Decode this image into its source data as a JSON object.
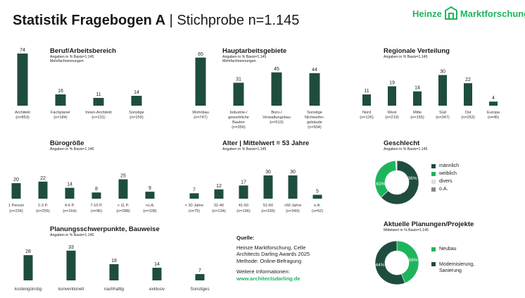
{
  "header": {
    "title_bold": "Statistik Fragebogen A",
    "title_sep": " | ",
    "title_rest": "Stichprobe n=1.145",
    "logo_left": "Heinze",
    "logo_right": "Marktforschung"
  },
  "colors": {
    "bar": "#1e4d40",
    "accent": "#1db55c",
    "light": "#dddddd",
    "grey": "#888888"
  },
  "source": {
    "heading": "Quelle:",
    "line1": "Heinze Marktforschung, Celle",
    "line2": "Architects Darling Awards 2025",
    "line3": "Methode: Online-Befragung",
    "more": "Weitere Informationen:",
    "link": "www.architectsdarling.de"
  },
  "chart_data": [
    {
      "id": "beruf",
      "type": "bar",
      "title": "Beruf/Arbeitsbereich",
      "note": [
        "Angaben in % Basis=1.145",
        "Mehrfachnennungen"
      ],
      "categories": [
        [
          "Architekt",
          "(n=853)"
        ],
        [
          "Fachplaner",
          "(n=184)"
        ],
        [
          "Innen-Architekt",
          "(n=131)"
        ],
        [
          "Sonstige",
          "(n=159)"
        ]
      ],
      "values": [
        74,
        16,
        11,
        14
      ]
    },
    {
      "id": "haupt",
      "type": "bar",
      "title": "Hauptarbeitsgebiete",
      "note": [
        "Angaben in % Basis=1.145",
        "Mehrfachnennungen"
      ],
      "categories": [
        [
          "Wohnbau",
          "(n=747)"
        ],
        [
          "Industrie-/",
          "gewerbliche",
          "Bauten",
          "(n=356)"
        ],
        [
          "Büro-/",
          "Verwaltungsbau",
          "(n=519)"
        ],
        [
          "Sonstige",
          "Nichtwohn-",
          "gebäude",
          "(n=504)"
        ]
      ],
      "values": [
        65,
        31,
        45,
        44
      ]
    },
    {
      "id": "region",
      "type": "bar",
      "title": "Regionale Verteilung",
      "note": [
        "Angaben in % Basis=1.145"
      ],
      "categories": [
        [
          "Nord",
          "(n=126)"
        ],
        [
          "West",
          "(n=219)"
        ],
        [
          "Mitte",
          "(n=155)"
        ],
        [
          "Süd",
          "(n=347)"
        ],
        [
          "Ost",
          "(n=253)"
        ],
        [
          "Europa",
          "(n=45)"
        ]
      ],
      "values": [
        11,
        19,
        14,
        30,
        22,
        4
      ]
    },
    {
      "id": "buero",
      "type": "bar",
      "title": "Bürogröße",
      "note": [
        "Angaben in % Basis=1.145"
      ],
      "categories": [
        [
          "1 Person",
          "(n=234)"
        ],
        [
          "2-3 P.",
          "(n=255)"
        ],
        [
          "4-6 P.",
          "(n=164)"
        ],
        [
          "7-10 P.",
          "(n=96)"
        ],
        [
          "> 11 P.",
          "(n=288)"
        ],
        [
          ">o.A.",
          "(n=108)"
        ]
      ],
      "values": [
        20,
        22,
        14,
        8,
        25,
        9
      ]
    },
    {
      "id": "alter",
      "type": "bar",
      "title": "Alter | Mittelwert = 53 Jahre",
      "note": [
        "Angaben in % Basis=1.145"
      ],
      "categories": [
        [
          "< 30 Jahre",
          "(n=75)"
        ],
        [
          "31-40",
          "(n=134)"
        ],
        [
          "41-50",
          "(n=196)"
        ],
        [
          "51-60",
          "(n=339)"
        ],
        [
          ">60 Jahre",
          "(n=349)"
        ],
        [
          "o.A.",
          "(n=52)"
        ]
      ],
      "values": [
        7,
        12,
        17,
        30,
        30,
        5
      ]
    },
    {
      "id": "planung",
      "type": "bar",
      "title": "Planungsschwerpunkte, Bauweise",
      "note": [
        "Angaben in % Basis=1.145"
      ],
      "categories": [
        [
          "kostengünstig"
        ],
        [
          "konventionell"
        ],
        [
          "nachhaltig"
        ],
        [
          "exklusiv"
        ],
        [
          "Sonstiges"
        ]
      ],
      "values": [
        28,
        33,
        18,
        14,
        7
      ]
    },
    {
      "id": "geschlecht",
      "type": "pie",
      "title": "Geschlecht",
      "note": [
        "Angaben in % Basis=1.145"
      ],
      "slices": [
        {
          "label": "männlich",
          "value": 63,
          "color": "#1e4d40",
          "text": "63%"
        },
        {
          "label": "weiblich",
          "value": 36,
          "color": "#1db55c",
          "text": "36%"
        },
        {
          "label": "divers",
          "value": 1,
          "color": "#dddddd",
          "text": "1%"
        },
        {
          "label": "o.A.",
          "value": 0,
          "color": "#888888",
          "text": ""
        }
      ]
    },
    {
      "id": "planungen",
      "type": "pie",
      "title": "Aktuelle Planungen/Projekte",
      "note": [
        "Mittelwert in % Basis=1.145"
      ],
      "slices": [
        {
          "label": "Neubau",
          "value": 44,
          "color": "#1db55c",
          "text": "44%"
        },
        {
          "label": "Modernisierung, Sanierung",
          "value": 56,
          "color": "#1e4d40",
          "text": "56%"
        }
      ]
    }
  ]
}
